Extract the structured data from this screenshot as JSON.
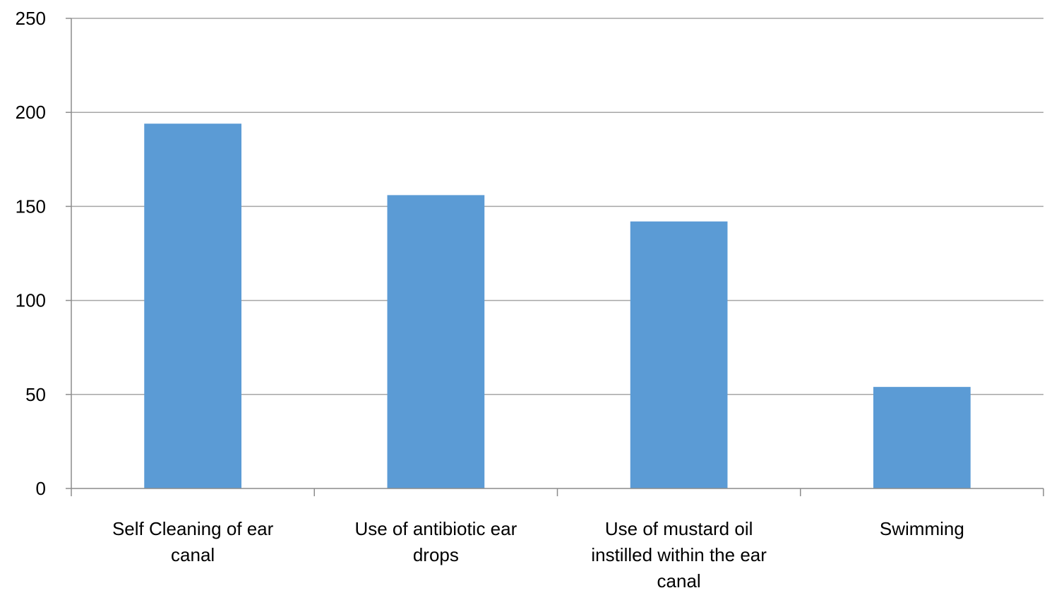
{
  "chart_data": {
    "type": "bar",
    "categories": [
      [
        "Self Cleaning of ear",
        "canal"
      ],
      [
        "Use of antibiotic ear",
        "drops"
      ],
      [
        "Use of mustard oil",
        "instilled within the ear",
        "canal"
      ],
      [
        "Swimming"
      ]
    ],
    "series": [
      {
        "values": [
          194,
          156,
          142,
          54
        ],
        "color": "#5b9bd5"
      }
    ],
    "title": "",
    "xlabel": "",
    "ylabel": "",
    "ylim": [
      0,
      250
    ],
    "yticks": [
      0,
      50,
      100,
      150,
      200,
      250
    ],
    "grid": true,
    "gridline_color": "#a6a6a6",
    "axis_color": "#8c8c8c",
    "legend": "none"
  }
}
